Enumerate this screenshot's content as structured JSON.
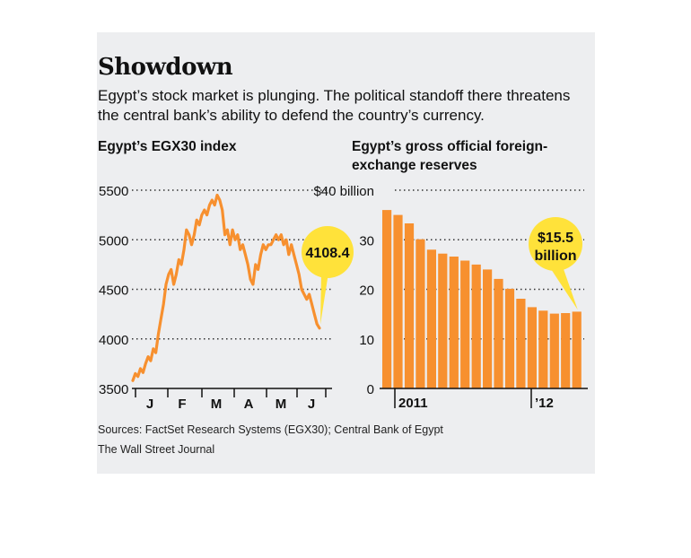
{
  "header": {
    "title": "Showdown",
    "subtitle": "Egypt’s stock market is plunging. The political standoff there threatens the central bank’s ability to defend the country’s currency."
  },
  "footer": {
    "sources": "Sources: FactSet Research Systems (EGX30); Central Bank of Egypt",
    "credit": "The Wall Street Journal"
  },
  "colors": {
    "accent": "#f7902f",
    "callout": "#ffe23a",
    "background": "#edeef0"
  },
  "chart_data": [
    {
      "type": "line",
      "title": "Egypt’s EGX30 index",
      "xlabel": "",
      "ylabel": "",
      "x_ticks": [
        "J",
        "F",
        "M",
        "A",
        "M",
        "J"
      ],
      "y_ticks": [
        "5500",
        "5000",
        "4500",
        "4000",
        "3500"
      ],
      "ylim": [
        3500,
        5500
      ],
      "grid": "horizontal dotted",
      "series": [
        {
          "values": [
            3580,
            3650,
            3620,
            3700,
            3660,
            3750,
            3820,
            3780,
            3900,
            3860,
            4050,
            4200,
            4350,
            4550,
            4650,
            4700,
            4550,
            4650,
            4800,
            4750,
            4900,
            5100,
            5050,
            4950,
            5050,
            5200,
            5150,
            5250,
            5300,
            5250,
            5350,
            5400,
            5350,
            5450,
            5400,
            5300,
            5050,
            5100,
            4950,
            5100,
            5000,
            5050,
            4900,
            4950,
            4850,
            4750,
            4600,
            4550,
            4750,
            4700,
            4850,
            4950,
            4900,
            4950,
            4950,
            5000,
            5050,
            5000,
            5050,
            4950,
            5000,
            4850,
            4950,
            4850,
            4750,
            4650,
            4500,
            4450,
            4400,
            4450,
            4350,
            4250,
            4150,
            4108.4
          ]
        }
      ],
      "annotation": {
        "label": "4108.4",
        "value": 4108.4
      }
    },
    {
      "type": "bar",
      "title": "Egypt’s gross official foreign-exchange reserves",
      "xlabel": "",
      "ylabel": "",
      "x_ticks": [
        "2011",
        "’12"
      ],
      "y_ticks": [
        "$40 billion",
        "30",
        "20",
        "10",
        "0"
      ],
      "ylim": [
        0,
        40
      ],
      "grid": "horizontal dotted",
      "values": [
        36.0,
        35.0,
        33.3,
        30.1,
        28.0,
        27.2,
        26.6,
        25.8,
        25.0,
        24.0,
        22.1,
        20.1,
        18.1,
        16.4,
        15.7,
        15.1,
        15.2,
        15.5
      ],
      "annotation": {
        "label": "$15.5 billion",
        "line1": "$15.5",
        "line2": "billion",
        "value": 15.5
      }
    }
  ]
}
